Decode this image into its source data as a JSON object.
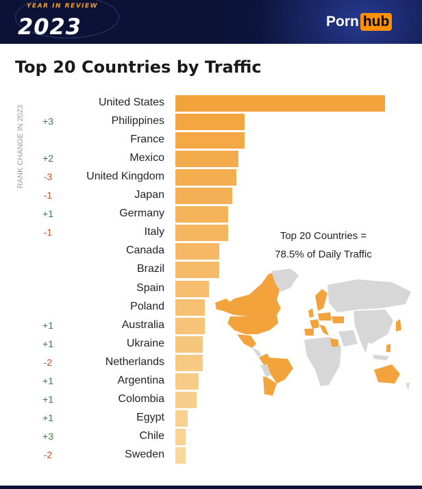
{
  "header": {
    "badge_text": "YEAR IN REVIEW",
    "year": "2023",
    "brand": {
      "part1": "Porn",
      "part2": "hub"
    }
  },
  "chart_data": {
    "type": "bar",
    "orientation": "horizontal",
    "title": "Top 20 Countries by Traffic",
    "rank_axis_label": "RANK CHANGE IN 2023",
    "value_scale_note": "relative traffic, United States = 100 (no numeric axis shown)",
    "categories": [
      "United States",
      "Philippines",
      "France",
      "Mexico",
      "United Kingdom",
      "Japan",
      "Germany",
      "Italy",
      "Canada",
      "Brazil",
      "Spain",
      "Poland",
      "Australia",
      "Ukraine",
      "Netherlands",
      "Argentina",
      "Colombia",
      "Egypt",
      "Chile",
      "Sweden"
    ],
    "values": [
      100,
      33,
      33,
      30,
      29,
      27,
      25,
      25,
      21,
      21,
      16,
      14,
      14,
      13,
      13,
      11,
      10,
      6,
      5,
      5
    ],
    "rank_change": [
      "",
      "+3",
      "",
      "+2",
      "-3",
      "-1",
      "+1",
      "-1",
      "",
      "",
      "",
      "",
      "+1",
      "+1",
      "-2",
      "+1",
      "+1",
      "+1",
      "+3",
      "-2"
    ],
    "annotation": {
      "line1": "Top 20 Countries =",
      "line2": "78.5% of Daily Traffic"
    }
  },
  "colors": {
    "bar_dark": "#f3a33c",
    "bar_light": "#f9d69b",
    "rank_up": "#3c7a47",
    "rank_down": "#c94f2a",
    "map_highlight": "#f3a33c",
    "map_base": "#d7d7d7",
    "header_bg": "#0b1236"
  }
}
